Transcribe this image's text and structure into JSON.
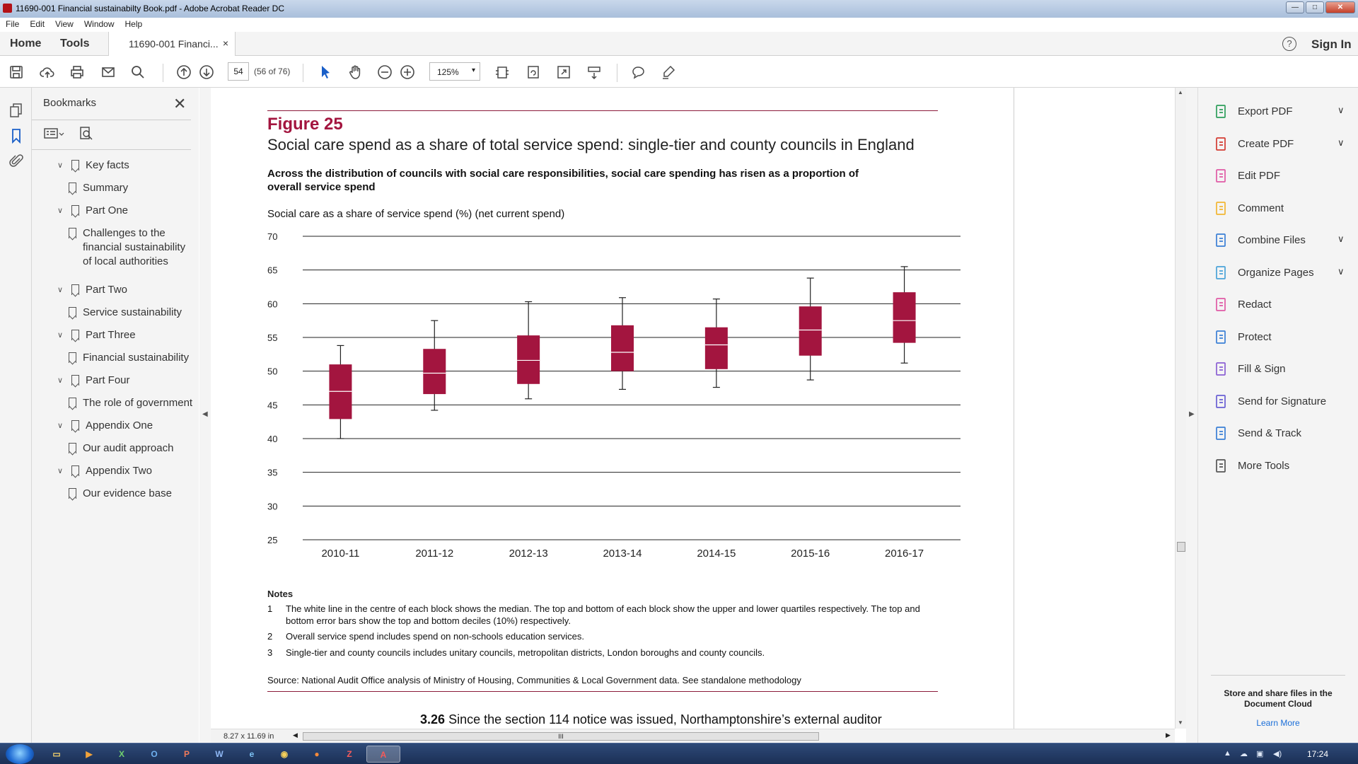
{
  "window": {
    "title": "11690-001 Financial sustainabilty Book.pdf - Adobe Acrobat Reader DC",
    "controls": [
      "—",
      "□",
      "✕"
    ]
  },
  "menu": [
    "File",
    "Edit",
    "View",
    "Window",
    "Help"
  ],
  "tabs": {
    "home": "Home",
    "tools": "Tools",
    "doc": "11690-001 Financi...",
    "close": "×",
    "help": "?",
    "sign_in": "Sign In"
  },
  "toolbar": {
    "page_number": "54",
    "page_of": "(56 of 76)",
    "zoom": "125%"
  },
  "bookmarks": {
    "title": "Bookmarks",
    "items": [
      {
        "label": "Key facts",
        "level": 0
      },
      {
        "label": "Summary",
        "level": 1
      },
      {
        "label": "Part One",
        "level": 0
      },
      {
        "label": "Challenges to the financial sustainability of local authorities",
        "level": 1
      },
      {
        "label": "Part Two",
        "level": 0
      },
      {
        "label": "Service sustainability",
        "level": 1
      },
      {
        "label": "Part Three",
        "level": 0
      },
      {
        "label": "Financial sustainability",
        "level": 1
      },
      {
        "label": "Part Four",
        "level": 0
      },
      {
        "label": "The role of government",
        "level": 1
      },
      {
        "label": "Appendix One",
        "level": 0
      },
      {
        "label": "Our audit approach",
        "level": 1
      },
      {
        "label": "Appendix Two",
        "level": 0
      },
      {
        "label": "Our evidence base",
        "level": 1
      }
    ]
  },
  "figure": {
    "label": "Figure 25",
    "title": "Social care spend as a share of total service spend: single-tier and county councils in England",
    "subtitle": "Across the distribution of councils with social care responsibilities, social care spending has risen as a proportion of overall service spend",
    "ylabel": "Social care as a share of service spend (%) (net current spend)"
  },
  "chart_data": {
    "type": "box",
    "ylabel": "Social care as a share of service spend (%) (net current spend)",
    "ylim": [
      25,
      70
    ],
    "yticks": [
      25,
      30,
      35,
      40,
      45,
      50,
      55,
      60,
      65,
      70
    ],
    "categories": [
      "2010-11",
      "2011-12",
      "2012-13",
      "2013-14",
      "2014-15",
      "2015-16",
      "2016-17"
    ],
    "bottom_decile": [
      40.0,
      44.2,
      45.9,
      47.3,
      47.6,
      48.7,
      51.2
    ],
    "lower_quartile": [
      42.9,
      46.6,
      48.1,
      50.0,
      50.3,
      52.3,
      54.2
    ],
    "median": [
      47.0,
      49.7,
      51.6,
      52.8,
      53.9,
      56.1,
      57.5
    ],
    "upper_quartile": [
      51.0,
      53.3,
      55.3,
      56.8,
      56.5,
      59.6,
      61.7
    ],
    "top_decile": [
      53.8,
      57.5,
      60.3,
      60.9,
      60.7,
      63.8,
      65.5
    ],
    "box_color": "#a3153f",
    "grid": "horizontal"
  },
  "notes": {
    "heading": "Notes",
    "items": [
      {
        "n": "1",
        "text": "The white line in the centre of each block shows the median. The top and bottom of each block show the upper and lower quartiles respectively. The top and bottom error bars show the top and bottom deciles (10%) respectively."
      },
      {
        "n": "2",
        "text": "Overall service spend includes spend on non-schools education services."
      },
      {
        "n": "3",
        "text": "Single-tier and county councils includes unitary councils, metropolitan districts, London boroughs and county councils."
      }
    ]
  },
  "source": "Source: National Audit Office analysis of Ministry of Housing, Communities & Local Government data. See standalone methodology",
  "paragraph": {
    "num": "3.26",
    "text": "Since the section 114 notice was issued, Northamptonshire’s external auditor"
  },
  "status": {
    "dims": "8.27 x 11.69 in",
    "thumb": "III"
  },
  "tools": [
    {
      "label": "Export PDF",
      "icon": "export-pdf-icon",
      "color": "#2e9e5b",
      "chev": true
    },
    {
      "label": "Create PDF",
      "icon": "create-pdf-icon",
      "color": "#d33b32",
      "chev": true
    },
    {
      "label": "Edit PDF",
      "icon": "edit-pdf-icon",
      "color": "#e05aa5",
      "chev": false
    },
    {
      "label": "Comment",
      "icon": "comment-icon",
      "color": "#f2b632",
      "chev": false
    },
    {
      "label": "Combine Files",
      "icon": "combine-files-icon",
      "color": "#3a7fd5",
      "chev": true
    },
    {
      "label": "Organize Pages",
      "icon": "organize-pages-icon",
      "color": "#4aa3d8",
      "chev": true
    },
    {
      "label": "Redact",
      "icon": "redact-icon",
      "color": "#e05aa5",
      "chev": false
    },
    {
      "label": "Protect",
      "icon": "protect-icon",
      "color": "#3a7fd5",
      "chev": false
    },
    {
      "label": "Fill & Sign",
      "icon": "fill-sign-icon",
      "color": "#8b5fd3",
      "chev": false
    },
    {
      "label": "Send for Signature",
      "icon": "send-signature-icon",
      "color": "#6a5fd3",
      "chev": false
    },
    {
      "label": "Send & Track",
      "icon": "send-track-icon",
      "color": "#3a7fd5",
      "chev": false
    },
    {
      "label": "More Tools",
      "icon": "more-tools-icon",
      "color": "#555555",
      "chev": false
    }
  ],
  "cloud": {
    "text": "Store and share files in the Document Cloud",
    "link": "Learn More"
  },
  "taskbar": {
    "clock": "17:24"
  }
}
